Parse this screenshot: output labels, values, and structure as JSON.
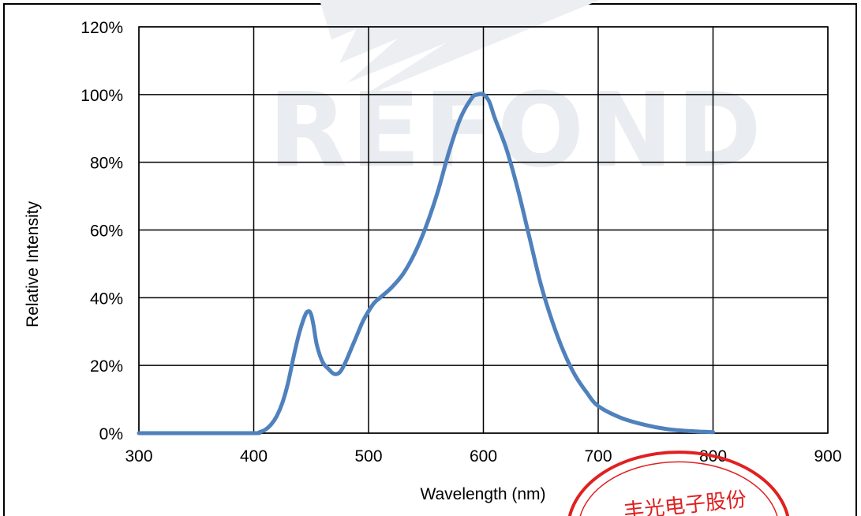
{
  "watermark": {
    "brand_text": "REFOND"
  },
  "stamp": {
    "text": "丰光电子股份",
    "color": "#e02020"
  },
  "chart_data": {
    "type": "line",
    "title": "",
    "xlabel": "Wavelength (nm)",
    "ylabel": "Relative Intensity",
    "xlim": [
      300,
      900
    ],
    "ylim": [
      0,
      1.2
    ],
    "x_ticks": [
      300,
      400,
      500,
      600,
      700,
      800,
      900
    ],
    "x_tick_labels": [
      "300",
      "400",
      "500",
      "600",
      "700",
      "800",
      "900"
    ],
    "y_ticks": [
      0,
      0.2,
      0.4,
      0.6,
      0.8,
      1.0,
      1.2
    ],
    "y_tick_labels": [
      "0%",
      "20%",
      "40%",
      "60%",
      "80%",
      "100%",
      "120%"
    ],
    "grid": true,
    "line_color": "#4f81bd",
    "series": [
      {
        "x": [
          300,
          350,
          400,
          405,
          410,
          415,
          420,
          425,
          430,
          435,
          440,
          445,
          448,
          450,
          452,
          455,
          460,
          465,
          470,
          475,
          480,
          485,
          490,
          495,
          500,
          505,
          510,
          520,
          530,
          540,
          550,
          560,
          570,
          580,
          590,
          595,
          600,
          605,
          610,
          620,
          630,
          640,
          650,
          660,
          670,
          680,
          690,
          700,
          720,
          740,
          760,
          780,
          800
        ],
        "y": [
          0.0,
          0.0,
          0.0,
          0.003,
          0.01,
          0.025,
          0.05,
          0.09,
          0.15,
          0.23,
          0.3,
          0.35,
          0.36,
          0.35,
          0.32,
          0.26,
          0.21,
          0.19,
          0.175,
          0.18,
          0.21,
          0.25,
          0.29,
          0.33,
          0.36,
          0.385,
          0.4,
          0.43,
          0.47,
          0.53,
          0.61,
          0.71,
          0.83,
          0.93,
          0.99,
          1.0,
          1.0,
          0.98,
          0.93,
          0.84,
          0.72,
          0.58,
          0.44,
          0.33,
          0.24,
          0.17,
          0.12,
          0.08,
          0.045,
          0.025,
          0.012,
          0.006,
          0.003
        ]
      }
    ]
  }
}
